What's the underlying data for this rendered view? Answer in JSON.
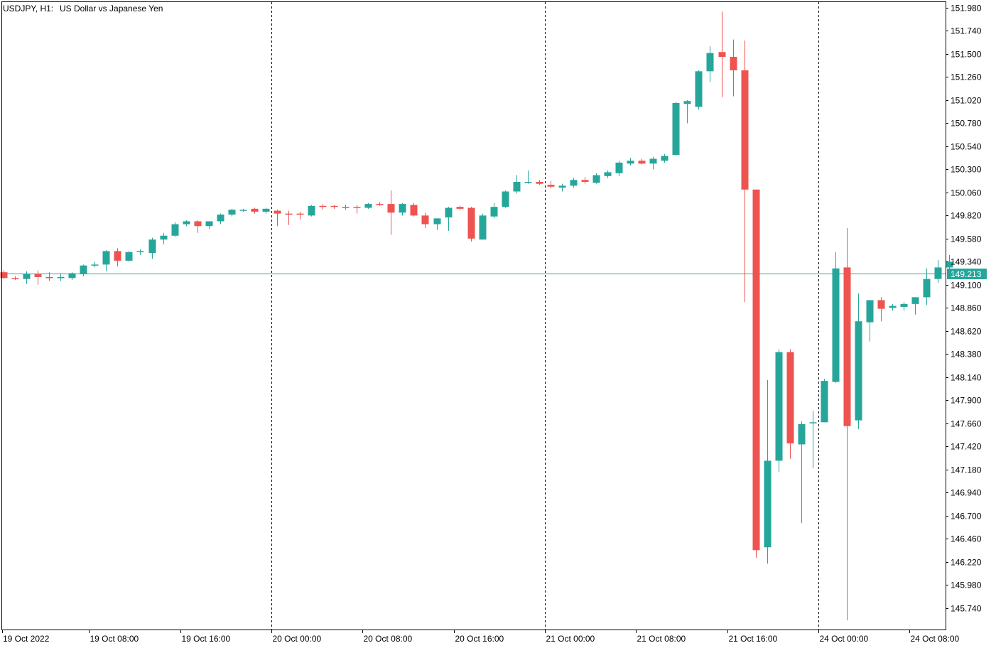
{
  "header": {
    "symbol": "USDJPY, H1:",
    "description": "US Dollar vs Japanese Yen"
  },
  "colors": {
    "bull": "#26a69a",
    "bear": "#ef5350",
    "price_line": "#26a69a",
    "grid": "#000000",
    "frame": "#000000",
    "background": "#ffffff"
  },
  "current_price": {
    "value": 149.213,
    "label": "149.213"
  },
  "chart_data": {
    "type": "candlestick",
    "timeframe": "H1",
    "ylim": [
      145.55,
      152.0
    ],
    "y_ticks": [
      "151.980",
      "151.740",
      "151.500",
      "151.260",
      "151.020",
      "150.780",
      "150.540",
      "150.300",
      "150.060",
      "149.820",
      "149.580",
      "149.340",
      "149.100",
      "148.860",
      "148.620",
      "148.380",
      "148.140",
      "147.900",
      "147.660",
      "147.420",
      "147.180",
      "146.940",
      "146.700",
      "146.460",
      "146.220",
      "145.980",
      "145.740"
    ],
    "x_ticks": [
      {
        "label": "19 Oct 2022",
        "index": 0
      },
      {
        "label": "19 Oct 08:00",
        "index": 8
      },
      {
        "label": "19 Oct 16:00",
        "index": 16
      },
      {
        "label": "20 Oct 00:00",
        "index": 24
      },
      {
        "label": "20 Oct 08:00",
        "index": 32
      },
      {
        "label": "20 Oct 16:00",
        "index": 40
      },
      {
        "label": "21 Oct 00:00",
        "index": 48
      },
      {
        "label": "21 Oct 08:00",
        "index": 56
      },
      {
        "label": "21 Oct 16:00",
        "index": 64
      },
      {
        "label": "24 Oct 00:00",
        "index": 72
      },
      {
        "label": "24 Oct 08:00",
        "index": 80
      }
    ],
    "day_separators": [
      24,
      48,
      72
    ],
    "candles": [
      {
        "o": 149.23,
        "h": 149.25,
        "l": 149.16,
        "c": 149.17
      },
      {
        "o": 149.17,
        "h": 149.19,
        "l": 149.15,
        "c": 149.16
      },
      {
        "o": 149.16,
        "h": 149.24,
        "l": 149.11,
        "c": 149.21
      },
      {
        "o": 149.21,
        "h": 149.25,
        "l": 149.1,
        "c": 149.18
      },
      {
        "o": 149.18,
        "h": 149.23,
        "l": 149.14,
        "c": 149.17
      },
      {
        "o": 149.17,
        "h": 149.22,
        "l": 149.14,
        "c": 149.18
      },
      {
        "o": 149.17,
        "h": 149.23,
        "l": 149.15,
        "c": 149.22
      },
      {
        "o": 149.21,
        "h": 149.31,
        "l": 149.19,
        "c": 149.3
      },
      {
        "o": 149.3,
        "h": 149.34,
        "l": 149.28,
        "c": 149.31
      },
      {
        "o": 149.31,
        "h": 149.46,
        "l": 149.24,
        "c": 149.45
      },
      {
        "o": 149.45,
        "h": 149.48,
        "l": 149.29,
        "c": 149.35
      },
      {
        "o": 149.35,
        "h": 149.45,
        "l": 149.34,
        "c": 149.44
      },
      {
        "o": 149.44,
        "h": 149.47,
        "l": 149.41,
        "c": 149.45
      },
      {
        "o": 149.43,
        "h": 149.59,
        "l": 149.37,
        "c": 149.57
      },
      {
        "o": 149.57,
        "h": 149.64,
        "l": 149.52,
        "c": 149.61
      },
      {
        "o": 149.61,
        "h": 149.75,
        "l": 149.6,
        "c": 149.73
      },
      {
        "o": 149.73,
        "h": 149.77,
        "l": 149.71,
        "c": 149.76
      },
      {
        "o": 149.76,
        "h": 149.77,
        "l": 149.64,
        "c": 149.71
      },
      {
        "o": 149.71,
        "h": 149.76,
        "l": 149.68,
        "c": 149.76
      },
      {
        "o": 149.76,
        "h": 149.84,
        "l": 149.73,
        "c": 149.83
      },
      {
        "o": 149.83,
        "h": 149.89,
        "l": 149.81,
        "c": 149.88
      },
      {
        "o": 149.88,
        "h": 149.89,
        "l": 149.86,
        "c": 149.88
      },
      {
        "o": 149.89,
        "h": 149.9,
        "l": 149.84,
        "c": 149.86
      },
      {
        "o": 149.86,
        "h": 149.9,
        "l": 149.84,
        "c": 149.89
      },
      {
        "o": 149.87,
        "h": 149.88,
        "l": 149.71,
        "c": 149.84
      },
      {
        "o": 149.84,
        "h": 149.87,
        "l": 149.72,
        "c": 149.83
      },
      {
        "o": 149.84,
        "h": 149.86,
        "l": 149.78,
        "c": 149.83
      },
      {
        "o": 149.82,
        "h": 149.93,
        "l": 149.81,
        "c": 149.92
      },
      {
        "o": 149.92,
        "h": 149.94,
        "l": 149.88,
        "c": 149.91
      },
      {
        "o": 149.92,
        "h": 149.93,
        "l": 149.89,
        "c": 149.91
      },
      {
        "o": 149.91,
        "h": 149.93,
        "l": 149.88,
        "c": 149.9
      },
      {
        "o": 149.91,
        "h": 149.93,
        "l": 149.84,
        "c": 149.9
      },
      {
        "o": 149.9,
        "h": 149.95,
        "l": 149.89,
        "c": 149.94
      },
      {
        "o": 149.94,
        "h": 149.96,
        "l": 149.92,
        "c": 149.93
      },
      {
        "o": 149.94,
        "h": 150.08,
        "l": 149.62,
        "c": 149.85
      },
      {
        "o": 149.85,
        "h": 149.95,
        "l": 149.82,
        "c": 149.94
      },
      {
        "o": 149.93,
        "h": 149.95,
        "l": 149.81,
        "c": 149.82
      },
      {
        "o": 149.82,
        "h": 149.85,
        "l": 149.69,
        "c": 149.73
      },
      {
        "o": 149.73,
        "h": 149.79,
        "l": 149.67,
        "c": 149.79
      },
      {
        "o": 149.8,
        "h": 149.91,
        "l": 149.66,
        "c": 149.9
      },
      {
        "o": 149.91,
        "h": 149.92,
        "l": 149.88,
        "c": 149.89
      },
      {
        "o": 149.9,
        "h": 149.91,
        "l": 149.55,
        "c": 149.58
      },
      {
        "o": 149.57,
        "h": 149.84,
        "l": 149.57,
        "c": 149.82
      },
      {
        "o": 149.81,
        "h": 149.95,
        "l": 149.79,
        "c": 149.91
      },
      {
        "o": 149.91,
        "h": 150.08,
        "l": 149.9,
        "c": 150.07
      },
      {
        "o": 150.07,
        "h": 150.24,
        "l": 150.05,
        "c": 150.17
      },
      {
        "o": 150.16,
        "h": 150.29,
        "l": 150.15,
        "c": 150.17
      },
      {
        "o": 150.17,
        "h": 150.19,
        "l": 150.14,
        "c": 150.15
      },
      {
        "o": 150.14,
        "h": 150.18,
        "l": 150.1,
        "c": 150.12
      },
      {
        "o": 150.11,
        "h": 150.15,
        "l": 150.07,
        "c": 150.13
      },
      {
        "o": 150.13,
        "h": 150.21,
        "l": 150.11,
        "c": 150.19
      },
      {
        "o": 150.19,
        "h": 150.22,
        "l": 150.15,
        "c": 150.17
      },
      {
        "o": 150.16,
        "h": 150.26,
        "l": 150.15,
        "c": 150.24
      },
      {
        "o": 150.23,
        "h": 150.29,
        "l": 150.21,
        "c": 150.27
      },
      {
        "o": 150.26,
        "h": 150.39,
        "l": 150.23,
        "c": 150.37
      },
      {
        "o": 150.36,
        "h": 150.42,
        "l": 150.34,
        "c": 150.39
      },
      {
        "o": 150.39,
        "h": 150.41,
        "l": 150.35,
        "c": 150.36
      },
      {
        "o": 150.36,
        "h": 150.43,
        "l": 150.3,
        "c": 150.41
      },
      {
        "o": 150.39,
        "h": 150.46,
        "l": 150.37,
        "c": 150.44
      },
      {
        "o": 150.45,
        "h": 151.0,
        "l": 150.44,
        "c": 150.99
      },
      {
        "o": 150.98,
        "h": 151.02,
        "l": 150.78,
        "c": 151.01
      },
      {
        "o": 150.95,
        "h": 151.33,
        "l": 150.92,
        "c": 151.32
      },
      {
        "o": 151.32,
        "h": 151.58,
        "l": 151.21,
        "c": 151.51
      },
      {
        "o": 151.52,
        "h": 151.94,
        "l": 151.05,
        "c": 151.47
      },
      {
        "o": 151.47,
        "h": 151.65,
        "l": 151.06,
        "c": 151.33
      },
      {
        "o": 151.33,
        "h": 151.64,
        "l": 148.92,
        "c": 150.09
      },
      {
        "o": 150.09,
        "h": 150.08,
        "l": 146.26,
        "c": 146.34
      },
      {
        "o": 146.37,
        "h": 148.11,
        "l": 146.2,
        "c": 147.27
      },
      {
        "o": 147.27,
        "h": 148.43,
        "l": 147.15,
        "c": 148.4
      },
      {
        "o": 148.4,
        "h": 148.43,
        "l": 147.29,
        "c": 147.45
      },
      {
        "o": 147.44,
        "h": 147.68,
        "l": 146.62,
        "c": 147.65
      },
      {
        "o": 147.66,
        "h": 147.79,
        "l": 147.19,
        "c": 147.67
      },
      {
        "o": 147.67,
        "h": 148.12,
        "l": 147.67,
        "c": 148.1
      },
      {
        "o": 148.09,
        "h": 149.44,
        "l": 148.08,
        "c": 149.27
      },
      {
        "o": 149.28,
        "h": 149.69,
        "l": 145.61,
        "c": 147.63
      },
      {
        "o": 147.69,
        "h": 149.01,
        "l": 147.6,
        "c": 148.72
      },
      {
        "o": 148.71,
        "h": 148.94,
        "l": 148.51,
        "c": 148.94
      },
      {
        "o": 148.94,
        "h": 148.97,
        "l": 148.72,
        "c": 148.85
      },
      {
        "o": 148.86,
        "h": 148.9,
        "l": 148.83,
        "c": 148.88
      },
      {
        "o": 148.87,
        "h": 148.92,
        "l": 148.83,
        "c": 148.9
      },
      {
        "o": 148.9,
        "h": 148.97,
        "l": 148.79,
        "c": 148.97
      },
      {
        "o": 148.97,
        "h": 149.27,
        "l": 148.89,
        "c": 149.16
      },
      {
        "o": 149.16,
        "h": 149.36,
        "l": 149.12,
        "c": 149.28
      },
      {
        "o": 149.28,
        "h": 149.41,
        "l": 149.24,
        "c": 149.34
      }
    ]
  }
}
